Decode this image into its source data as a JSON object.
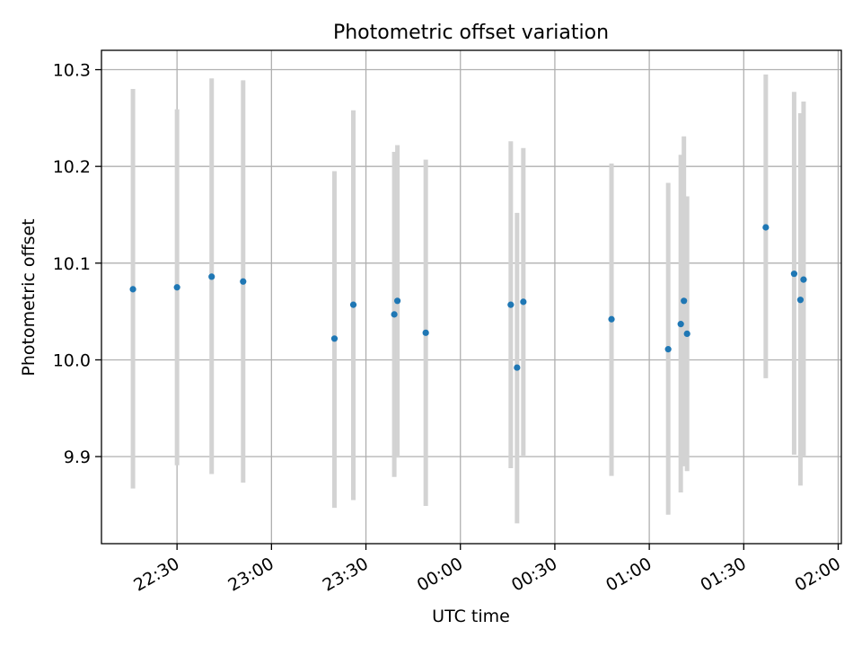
{
  "chart_data": {
    "type": "scatter",
    "title": "Photometric offset variation",
    "xlabel": "UTC time",
    "ylabel": "Photometric offset",
    "x_tick_labels": [
      "22:30",
      "23:00",
      "23:30",
      "00:00",
      "00:30",
      "01:00",
      "01:30",
      "02:00"
    ],
    "y_tick_labels": [
      "9.9",
      "10.0",
      "10.1",
      "10.2",
      "10.3"
    ],
    "y_tick_values": [
      9.9,
      10.0,
      10.1,
      10.2,
      10.3
    ],
    "ylim": [
      9.81,
      10.32
    ],
    "xlim": [
      "22:06",
      "02:01"
    ],
    "grid": true,
    "point_color": "#1f77b4",
    "errorbar_color": "#d3d3d3",
    "points": [
      {
        "x": "22:16",
        "y": 10.073,
        "ylow": 9.867,
        "yhigh": 10.28
      },
      {
        "x": "22:30",
        "y": 10.075,
        "ylow": 9.891,
        "yhigh": 10.259
      },
      {
        "x": "22:41",
        "y": 10.086,
        "ylow": 9.882,
        "yhigh": 10.291
      },
      {
        "x": "22:51",
        "y": 10.081,
        "ylow": 9.873,
        "yhigh": 10.289
      },
      {
        "x": "23:20",
        "y": 10.022,
        "ylow": 9.847,
        "yhigh": 10.195
      },
      {
        "x": "23:26",
        "y": 10.057,
        "ylow": 9.855,
        "yhigh": 10.258
      },
      {
        "x": "23:39",
        "y": 10.047,
        "ylow": 9.879,
        "yhigh": 10.215
      },
      {
        "x": "23:40",
        "y": 10.061,
        "ylow": 9.899,
        "yhigh": 10.222
      },
      {
        "x": "23:49",
        "y": 10.028,
        "ylow": 9.849,
        "yhigh": 10.207
      },
      {
        "x": "00:16",
        "y": 10.057,
        "ylow": 9.888,
        "yhigh": 10.226
      },
      {
        "x": "00:18",
        "y": 9.992,
        "ylow": 9.831,
        "yhigh": 10.152
      },
      {
        "x": "00:20",
        "y": 10.06,
        "ylow": 9.901,
        "yhigh": 10.219
      },
      {
        "x": "00:48",
        "y": 10.042,
        "ylow": 9.88,
        "yhigh": 10.203
      },
      {
        "x": "01:06",
        "y": 10.011,
        "ylow": 9.84,
        "yhigh": 10.183
      },
      {
        "x": "01:10",
        "y": 10.037,
        "ylow": 9.863,
        "yhigh": 10.212
      },
      {
        "x": "01:11",
        "y": 10.061,
        "ylow": 9.89,
        "yhigh": 10.231
      },
      {
        "x": "01:12",
        "y": 10.027,
        "ylow": 9.885,
        "yhigh": 10.169
      },
      {
        "x": "01:37",
        "y": 10.137,
        "ylow": 9.981,
        "yhigh": 10.295
      },
      {
        "x": "01:46",
        "y": 10.089,
        "ylow": 9.902,
        "yhigh": 10.277
      },
      {
        "x": "01:48",
        "y": 10.062,
        "ylow": 9.87,
        "yhigh": 10.255
      },
      {
        "x": "01:49",
        "y": 10.083,
        "ylow": 9.9,
        "yhigh": 10.267
      }
    ]
  }
}
